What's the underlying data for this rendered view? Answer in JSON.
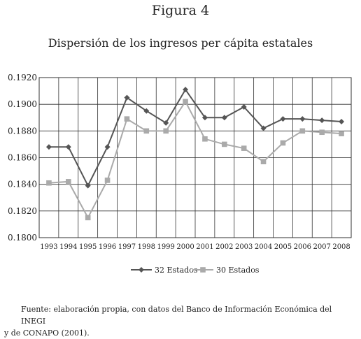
{
  "figure_label": "Figura 4",
  "source_note": {
    "line1": "Fuente: elaboración propia, con datos del Banco de Información Económica del INEGI",
    "line2": "y de CONAPO (2001)."
  },
  "colors": {
    "series_dark": "#555555",
    "series_light": "#aaaaaa",
    "grid": "#333333"
  },
  "chart_data": {
    "type": "line",
    "title": "Dispersión de los ingresos per cápita estatales",
    "xlabel": "",
    "ylabel": "",
    "x": [
      "1993",
      "1994",
      "1995",
      "1996",
      "1997",
      "1998",
      "1999",
      "2000",
      "2001",
      "2002",
      "2003",
      "2004",
      "2005",
      "2006",
      "2007",
      "2008"
    ],
    "ylim": [
      0.18,
      0.192
    ],
    "yticks": [
      "0.1800",
      "0.1820",
      "0.1840",
      "0.1860",
      "0.1880",
      "0.1900",
      "0.1920"
    ],
    "grid": true,
    "legend": "bottom",
    "series": [
      {
        "name": "32 Estados",
        "marker": "diamond",
        "values": [
          0.1868,
          0.1868,
          0.1839,
          0.1868,
          0.1905,
          0.1895,
          0.1886,
          0.1911,
          0.189,
          0.189,
          0.1898,
          0.1882,
          0.1889,
          0.1889,
          0.1888,
          0.1887
        ]
      },
      {
        "name": "30 Estados",
        "marker": "square",
        "values": [
          0.1841,
          0.1842,
          0.1815,
          0.1843,
          0.1889,
          0.188,
          0.188,
          0.1902,
          0.1874,
          0.187,
          0.1867,
          0.1857,
          0.1871,
          0.188,
          0.1879,
          0.1878
        ]
      }
    ]
  }
}
